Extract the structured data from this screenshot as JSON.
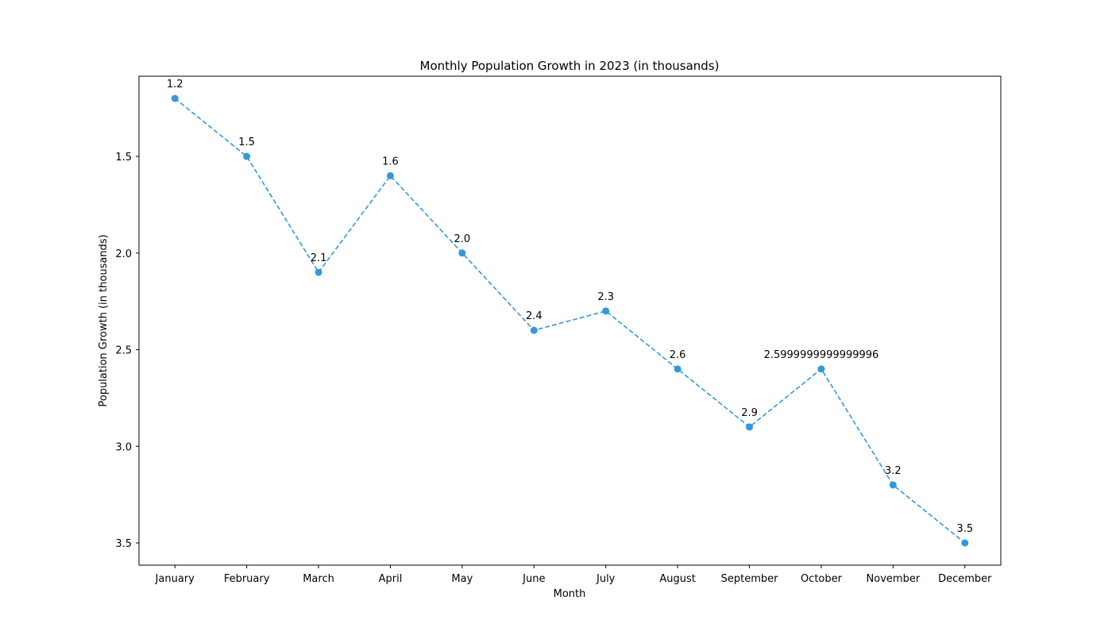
{
  "chart_data": {
    "type": "line",
    "title": "Monthly Population Growth in 2023 (in thousands)",
    "xlabel": "Month",
    "ylabel": "Population Growth (in thousands)",
    "categories": [
      "January",
      "February",
      "March",
      "April",
      "May",
      "June",
      "July",
      "August",
      "September",
      "October",
      "November",
      "December"
    ],
    "series": [
      {
        "values": [
          1.2,
          1.5,
          2.1,
          1.6,
          2.0,
          2.4,
          2.3,
          2.6,
          2.9,
          2.6,
          3.2,
          3.5
        ],
        "labels": [
          "1.2",
          "1.5",
          "2.1",
          "1.6",
          "2.0",
          "2.4",
          "2.3",
          "2.6",
          "2.9",
          "2.5999999999999996",
          "3.2",
          "3.5"
        ],
        "color": "#3498db",
        "line_style": "dashed",
        "marker": "circle"
      }
    ],
    "ylim": [
      1.085,
      3.615
    ],
    "y_inverted": true,
    "y_ticks": [
      1.5,
      2.0,
      2.5,
      3.0,
      3.5
    ],
    "y_tick_labels": [
      "1.5",
      "2.0",
      "2.5",
      "3.0",
      "3.5"
    ],
    "grid": false,
    "legend": false
  }
}
